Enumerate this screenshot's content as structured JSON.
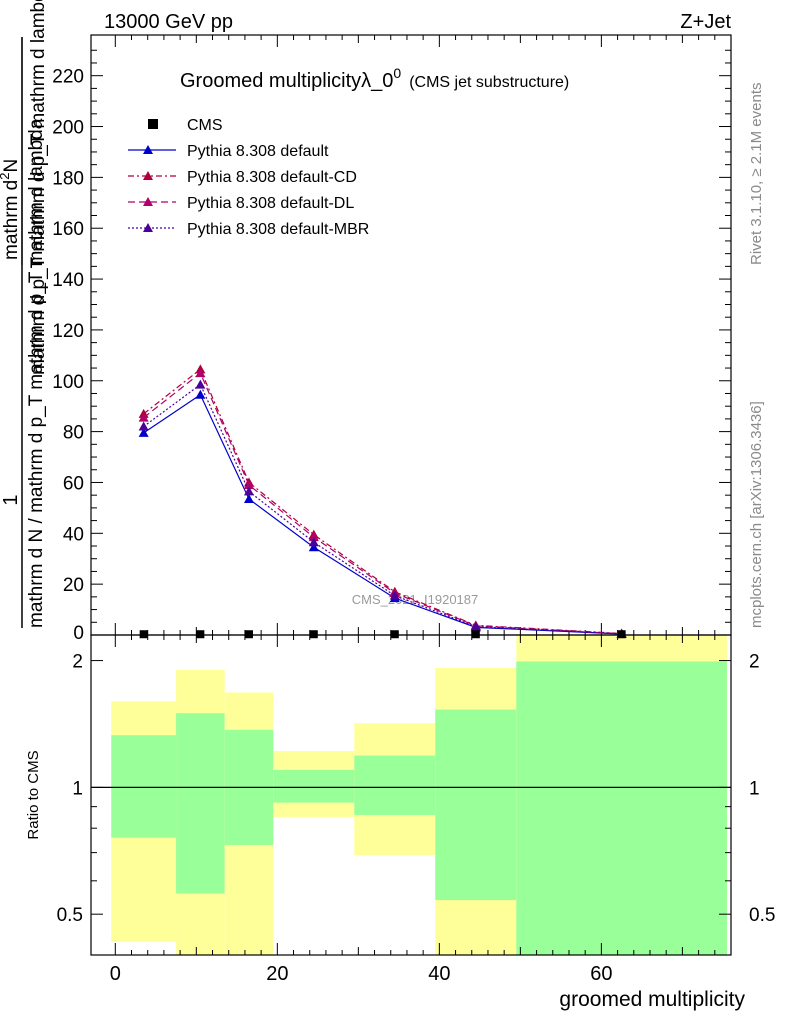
{
  "header": {
    "left": "13000 GeV pp",
    "right": "Z+Jet"
  },
  "side_text": {
    "rivet": "Rivet 3.1.10, ≥ 2.1M events",
    "mcplots": "mcplots.cern.ch [arXiv:1306.3436]"
  },
  "chart_data": {
    "type": "line",
    "title_main": "Groomed multiplicityλ_0",
    "title_sup": "0",
    "title_note": "(CMS jet substructure)",
    "watermark": "CMS_2021_I1920187",
    "ylabel_num": "1",
    "ylabel_den": "mathrm d N / mathrm d p_T mathrm d p_T mathrm d lambda",
    "ylabel_top": "mathrm d²N",
    "ylabel_top_clean": "mathrm d",
    "ylabel_sup": "2",
    "ylabel_top_rest": "N",
    "ylabel_bottom": "mathrm d p_T mathrm d p_T mathrm d lambda",
    "xlabel": "groomed multiplicity",
    "ratio_ylabel": "Ratio to CMS",
    "xlim": [
      -3,
      76
    ],
    "ylim": [
      0,
      236
    ],
    "ratio_ylim": [
      0.4,
      2.3
    ],
    "x_ticks": [
      "0",
      "20",
      "40",
      "60"
    ],
    "y_ticks": [
      "20",
      "40",
      "60",
      "80",
      "100",
      "120",
      "140",
      "160",
      "180",
      "200",
      "220"
    ],
    "ratio_ticks": [
      "0.5",
      "1",
      "2"
    ],
    "legend": {
      "cms": "CMS",
      "s1": "Pythia 8.308 default",
      "s2": "Pythia 8.308 default-CD",
      "s3": "Pythia 8.308 default-DL",
      "s4": "Pythia 8.308 default-MBR"
    },
    "x": [
      3.5,
      10.5,
      16.5,
      24.5,
      34.5,
      44.5,
      62.5
    ],
    "cms": [
      0.3,
      0.3,
      0.3,
      0.3,
      0.3,
      0.3,
      0.3
    ],
    "series": [
      {
        "name": "Pythia 8.308 default",
        "color": "#0000cc",
        "dash": "",
        "values": [
          79.5,
          94.5,
          53.5,
          34.5,
          14.5,
          3.0,
          0.4
        ]
      },
      {
        "name": "Pythia 8.308 default-CD",
        "color": "#b0003a",
        "dash": "6,3,2,3",
        "values": [
          87.0,
          104.5,
          60.0,
          39.5,
          17.0,
          3.8,
          0.6
        ]
      },
      {
        "name": "Pythia 8.308 default-DL",
        "color": "#b0006a",
        "dash": "7,4",
        "values": [
          85.5,
          103.0,
          59.0,
          38.5,
          16.5,
          3.6,
          0.5
        ]
      },
      {
        "name": "Pythia 8.308 default-MBR",
        "color": "#4b0099",
        "dash": "2,2",
        "values": [
          82.0,
          98.5,
          56.5,
          36.5,
          15.5,
          3.3,
          0.5
        ]
      }
    ],
    "ratio_bands": [
      {
        "x0": -0.5,
        "x1": 7.5,
        "yellow": [
          0.43,
          1.6
        ],
        "green": [
          0.76,
          1.33
        ]
      },
      {
        "x0": 7.5,
        "x1": 13.5,
        "yellow": [
          0.35,
          1.9
        ],
        "green": [
          0.56,
          1.5
        ]
      },
      {
        "x0": 13.5,
        "x1": 19.5,
        "yellow": [
          0.35,
          1.68
        ],
        "green": [
          0.73,
          1.37
        ]
      },
      {
        "x0": 19.5,
        "x1": 29.5,
        "yellow": [
          0.85,
          1.22
        ],
        "green": [
          0.92,
          1.1
        ]
      },
      {
        "x0": 29.5,
        "x1": 39.5,
        "yellow": [
          0.69,
          1.42
        ],
        "green": [
          0.86,
          1.19
        ]
      },
      {
        "x0": 39.5,
        "x1": 49.5,
        "yellow": [
          0.35,
          1.92
        ],
        "green": [
          0.54,
          1.53
        ]
      },
      {
        "x0": 49.5,
        "x1": 75.5,
        "yellow": [
          0.35,
          2.3
        ],
        "green": [
          0.35,
          1.99
        ]
      }
    ],
    "colors": {
      "yellow": "#ffff99",
      "green": "#99ff99"
    }
  }
}
